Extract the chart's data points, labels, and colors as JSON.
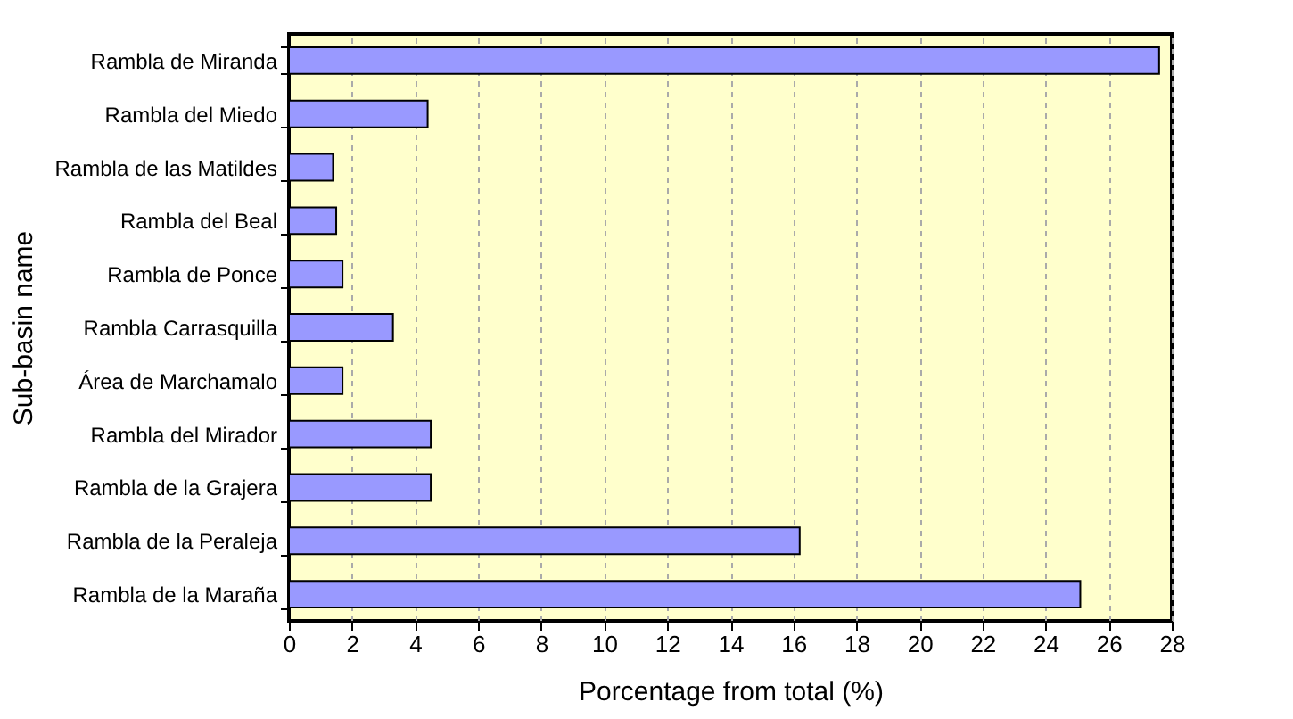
{
  "chart_data": {
    "type": "bar",
    "orientation": "horizontal",
    "xlabel": "Porcentage from total (%)",
    "ylabel": "Sub-basin name",
    "categories": [
      "Rambla de Miranda",
      "Rambla del Miedo",
      "Rambla de las Matildes",
      "Rambla del Beal",
      "Rambla de Ponce",
      "Rambla Carrasquilla",
      "Área de Marchamalo",
      "Rambla del Mirador",
      "Rambla de la Grajera",
      "Rambla de la Peraleja",
      "Rambla de la Maraña"
    ],
    "values": [
      27.6,
      4.4,
      1.4,
      1.5,
      1.7,
      3.3,
      1.7,
      4.5,
      4.5,
      16.2,
      25.1
    ],
    "color": "#9999ff",
    "xlim": [
      0,
      28
    ],
    "xticks": [
      0,
      2,
      4,
      6,
      8,
      10,
      12,
      14,
      16,
      18,
      20,
      22,
      24,
      26,
      28
    ],
    "grid": "x"
  }
}
